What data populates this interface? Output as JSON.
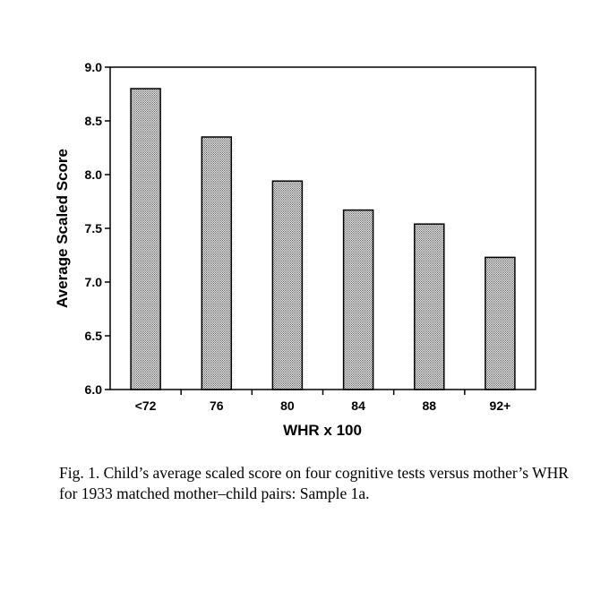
{
  "chart_data": {
    "type": "bar",
    "xlabel": "WHR x 100",
    "ylabel": "Average Scaled Score",
    "categories": [
      "<72",
      "76",
      "80",
      "84",
      "88",
      "92+"
    ],
    "values": [
      8.8,
      8.35,
      7.94,
      7.67,
      7.54,
      7.23
    ],
    "ylim": [
      6.0,
      9.0
    ],
    "yticks": [
      "6.0",
      "6.5",
      "7.0",
      "7.5",
      "8.0",
      "8.5",
      "9.0"
    ],
    "grid": false,
    "bar_fill": "dotted-gray"
  },
  "caption": "Fig. 1. Child’s average scaled score on four cognitive tests versus mother’s WHR for 1933 matched mother–child pairs: Sample 1a."
}
